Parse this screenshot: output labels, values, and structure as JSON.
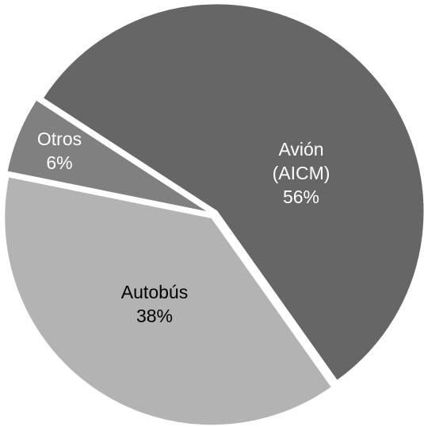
{
  "chart_data": {
    "type": "pie",
    "categories": [
      "Avión (AICM)",
      "Autobús",
      "Otros"
    ],
    "values": [
      56,
      38,
      6
    ],
    "value_labels": [
      "56%",
      "38%",
      "6%"
    ],
    "colors": [
      "#666666",
      "#b3b3b3",
      "#808080"
    ],
    "label_colors": [
      "#ffffff",
      "#000000",
      "#ffffff"
    ]
  }
}
